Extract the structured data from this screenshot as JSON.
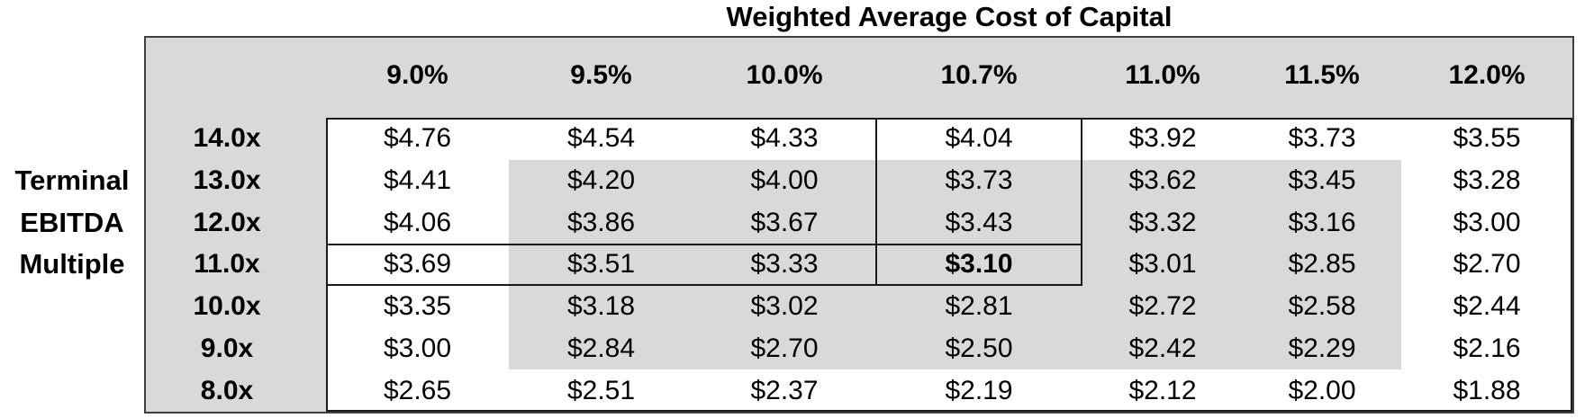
{
  "title": "Weighted Average Cost of Capital",
  "side_label": {
    "text": "Terminal EBITDA Multiple",
    "lines": [
      "Terminal",
      "EBITDA",
      "Multiple"
    ]
  },
  "chart_data": {
    "type": "table",
    "title": "Weighted Average Cost of Capital",
    "col_axis_label": "Weighted Average Cost of Capital",
    "row_axis_label": "Terminal EBITDA Multiple",
    "columns": [
      "9.0%",
      "9.5%",
      "10.0%",
      "10.7%",
      "11.0%",
      "11.5%",
      "12.0%"
    ],
    "rows": [
      "14.0x",
      "13.0x",
      "12.0x",
      "11.0x",
      "10.0x",
      "9.0x",
      "8.0x"
    ],
    "values": [
      [
        "$4.76",
        "$4.54",
        "$4.33",
        "$4.04",
        "$3.92",
        "$3.73",
        "$3.55"
      ],
      [
        "$4.41",
        "$4.20",
        "$4.00",
        "$3.73",
        "$3.62",
        "$3.45",
        "$3.28"
      ],
      [
        "$4.06",
        "$3.86",
        "$3.67",
        "$3.43",
        "$3.32",
        "$3.16",
        "$3.00"
      ],
      [
        "$3.69",
        "$3.51",
        "$3.33",
        "$3.10",
        "$3.01",
        "$2.85",
        "$2.70"
      ],
      [
        "$3.35",
        "$3.18",
        "$3.02",
        "$2.81",
        "$2.72",
        "$2.58",
        "$2.44"
      ],
      [
        "$3.00",
        "$2.84",
        "$2.70",
        "$2.50",
        "$2.42",
        "$2.29",
        "$2.16"
      ],
      [
        "$2.65",
        "$2.51",
        "$2.37",
        "$2.19",
        "$2.12",
        "$2.00",
        "$1.88"
      ]
    ],
    "base_case": {
      "row": "11.0x",
      "column": "10.7%",
      "value": "$3.10",
      "bold": true
    },
    "bold_cell_index": {
      "row": 3,
      "col": 3
    },
    "shaded_region": {
      "row_indices": [
        1,
        2,
        3,
        4,
        5
      ],
      "col_indices": [
        1,
        2,
        3,
        4,
        5
      ],
      "rows": [
        "13.0x",
        "9.0x"
      ],
      "columns": [
        "9.5%",
        "11.5%"
      ]
    },
    "crosshair": {
      "boxed_column": "10.7%",
      "boxed_column_row_span": [
        "14.0x",
        "11.0x"
      ],
      "boxed_row": "11.0x",
      "boxed_row_col_span": [
        "9.0%",
        "10.7%"
      ]
    },
    "colors": {
      "panel_bg": "#d9d9d9",
      "cell_bg": "#ffffff",
      "shaded_cell_bg": "#d9d9d9",
      "frame_border": "#3f3f3f",
      "inner_border": "#1a1a1a",
      "text": "#000000"
    },
    "legend_position": "none",
    "grid": false
  }
}
